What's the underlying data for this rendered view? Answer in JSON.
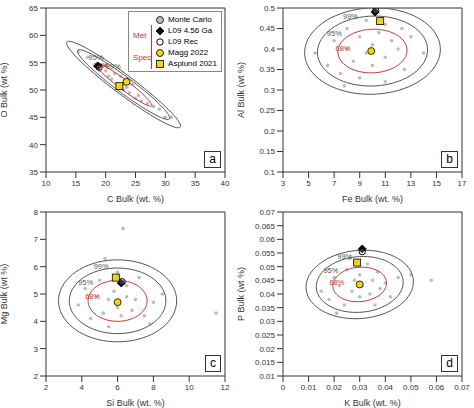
{
  "chart_data": [
    {
      "type": "scatter",
      "panel": "a",
      "x_label": "C Bulk (wt. %)",
      "y_label": "O Bulk (wt %)",
      "xlim": [
        10,
        40
      ],
      "ylim": [
        35,
        65
      ],
      "xticks": [
        10,
        15,
        20,
        25,
        30,
        35,
        40
      ],
      "yticks": [
        35,
        40,
        45,
        50,
        55,
        60,
        65
      ],
      "grid": false,
      "legend": "top-right",
      "legend_groups": [
        {
          "label": "Met",
          "series": [
            "L09 4.56 Ga",
            "L09 Rec"
          ]
        },
        {
          "label": "Spec",
          "series": [
            "Magg 2022",
            "Asplund 2021"
          ]
        }
      ],
      "series": [
        {
          "name": "Monte Carlo",
          "color": "#bdbdbd",
          "marker": "circle",
          "x": [
            15.5,
            17,
            18.5,
            19,
            20,
            20.5,
            21,
            21.5,
            22,
            22.5,
            23,
            23,
            23.5,
            24,
            24.5,
            25,
            25.5,
            26,
            27,
            28,
            29,
            30,
            31,
            20
          ],
          "y": [
            57,
            56,
            54,
            53.5,
            53.5,
            52.5,
            52,
            53,
            51,
            52.5,
            51,
            50,
            50.5,
            49.5,
            51,
            48.5,
            49,
            48,
            47.5,
            47,
            46.5,
            45,
            45,
            54.5
          ]
        },
        {
          "name": "L09 4.56 Ga",
          "color": "#000000",
          "marker": "diamond",
          "x": [
            18.7
          ],
          "y": [
            54.4
          ]
        },
        {
          "name": "L09 Rec",
          "color": "#000000",
          "marker": "open_circle",
          "x": [
            18.9
          ],
          "y": [
            54.2
          ]
        },
        {
          "name": "Magg 2022",
          "color": "#f2d21b",
          "marker": "circle",
          "x": [
            23.5
          ],
          "y": [
            51.5
          ]
        },
        {
          "name": "Asplund 2021",
          "color": "#f2d21b",
          "marker": "square",
          "x": [
            22.3
          ],
          "y": [
            50.7
          ]
        }
      ],
      "ellipses": [
        {
          "label": "99%",
          "color": "#555555",
          "center": [
            23,
            51
          ],
          "axis1": [
            9.5,
            -7.8
          ],
          "axis2": [
            1.1,
            1.35
          ]
        },
        {
          "label": "95%",
          "color": "#555555",
          "center": [
            23,
            51
          ],
          "axis1": [
            7.7,
            -6.3
          ],
          "axis2": [
            0.9,
            1.1
          ]
        },
        {
          "label": "68%",
          "color": "#cc3333",
          "center": [
            23,
            51
          ],
          "axis1": [
            4.7,
            -3.9
          ],
          "axis2": [
            0.55,
            0.68
          ]
        }
      ]
    },
    {
      "type": "scatter",
      "panel": "b",
      "x_label": "Fe Bulk (wt. %)",
      "y_label": "Al Bulk (wt %)",
      "xlim": [
        3,
        17
      ],
      "ylim": [
        0.1,
        0.5
      ],
      "xticks": [
        3,
        5,
        7,
        9,
        11,
        13,
        15,
        17
      ],
      "yticks": [
        0.1,
        0.15,
        0.2,
        0.25,
        0.3,
        0.35,
        0.4,
        0.45,
        0.5
      ],
      "grid": false,
      "series": [
        {
          "name": "Monte Carlo",
          "color": "#bdbdbd",
          "marker": "circle",
          "x": [
            5.5,
            6.5,
            7,
            7.5,
            8,
            8,
            8.5,
            9,
            9,
            9.5,
            10,
            10,
            10.5,
            11,
            11,
            11.5,
            12,
            12.5,
            13,
            14,
            9.5,
            11,
            7.8,
            12.3
          ],
          "y": [
            0.39,
            0.36,
            0.42,
            0.34,
            0.4,
            0.45,
            0.37,
            0.43,
            0.33,
            0.39,
            0.41,
            0.36,
            0.44,
            0.38,
            0.32,
            0.42,
            0.4,
            0.35,
            0.43,
            0.39,
            0.47,
            0.46,
            0.31,
            0.45
          ]
        },
        {
          "name": "L09 4.56 Ga",
          "color": "#000000",
          "marker": "diamond",
          "x": [
            10.2
          ],
          "y": [
            0.49
          ]
        },
        {
          "name": "L09 Rec",
          "color": "#000000",
          "marker": "open_circle",
          "x": [
            10.25
          ],
          "y": [
            0.493
          ]
        },
        {
          "name": "Magg 2022",
          "color": "#f2d21b",
          "marker": "circle",
          "x": [
            9.9
          ],
          "y": [
            0.395
          ]
        },
        {
          "name": "Asplund 2021",
          "color": "#f2d21b",
          "marker": "square",
          "x": [
            10.6
          ],
          "y": [
            0.468
          ]
        }
      ],
      "ellipses": [
        {
          "label": "99%",
          "color": "#555555",
          "center": [
            10,
            0.395
          ],
          "axis1": [
            5.3,
            0.01
          ],
          "axis2": [
            -0.3,
            0.105
          ]
        },
        {
          "label": "95%",
          "color": "#555555",
          "center": [
            10,
            0.395
          ],
          "axis1": [
            4.3,
            0.008
          ],
          "axis2": [
            -0.25,
            0.085
          ]
        },
        {
          "label": "68%",
          "color": "#cc3333",
          "center": [
            10,
            0.395
          ],
          "axis1": [
            2.7,
            0.005
          ],
          "axis2": [
            -0.15,
            0.053
          ]
        }
      ]
    },
    {
      "type": "scatter",
      "panel": "c",
      "x_label": "Si Bulk (wt. %)",
      "y_label": "Mg Bulk (wt %)",
      "xlim": [
        2,
        12
      ],
      "ylim": [
        2,
        8
      ],
      "xticks": [
        2,
        4,
        6,
        8,
        10,
        12
      ],
      "yticks": [
        2,
        3,
        4,
        5,
        6,
        7,
        8
      ],
      "grid": false,
      "series": [
        {
          "name": "Monte Carlo",
          "color": "#bdbdbd",
          "marker": "circle",
          "x": [
            3.8,
            4.2,
            4.5,
            4.8,
            5,
            5.2,
            5.5,
            5.5,
            5.8,
            6,
            6,
            6.2,
            6.5,
            6.5,
            6.8,
            7,
            7.2,
            7.5,
            8,
            8.5,
            6.3,
            5.3,
            7.8,
            11.5
          ],
          "y": [
            4.6,
            5.2,
            4.1,
            4.9,
            5.5,
            4.3,
            4.8,
            3.8,
            5.1,
            4.5,
            5.8,
            4.2,
            4.9,
            5.3,
            4.4,
            4.8,
            5.6,
            4.2,
            4.7,
            5.0,
            7.4,
            6.3,
            3.9,
            4.3
          ]
        },
        {
          "name": "L09 4.56 Ga",
          "color": "#000000",
          "marker": "diamond",
          "x": [
            6.2
          ],
          "y": [
            5.4
          ]
        },
        {
          "name": "L09 Rec",
          "color": "#000000",
          "marker": "open_circle",
          "x": [
            6.25
          ],
          "y": [
            5.45
          ]
        },
        {
          "name": "Magg 2022",
          "color": "#f2d21b",
          "marker": "circle",
          "x": [
            6.0
          ],
          "y": [
            4.7
          ]
        },
        {
          "name": "Asplund 2021",
          "color": "#f2d21b",
          "marker": "square",
          "x": [
            5.9
          ],
          "y": [
            5.6
          ]
        }
      ],
      "ellipses": [
        {
          "label": "99%",
          "color": "#555555",
          "center": [
            6,
            4.75
          ],
          "axis1": [
            3.3,
            0
          ],
          "axis2": [
            0,
            1.5
          ]
        },
        {
          "label": "95%",
          "color": "#555555",
          "center": [
            6,
            4.75
          ],
          "axis1": [
            2.7,
            0
          ],
          "axis2": [
            0,
            1.2
          ]
        },
        {
          "label": "68%",
          "color": "#cc3333",
          "center": [
            6,
            4.75
          ],
          "axis1": [
            1.65,
            0
          ],
          "axis2": [
            0,
            0.75
          ]
        }
      ]
    },
    {
      "type": "scatter",
      "panel": "d",
      "x_label": "K Bulk (wt. %)",
      "y_label": "P Bulk (wt %)",
      "xlim": [
        0,
        0.07
      ],
      "ylim": [
        0.01,
        0.07
      ],
      "xticks": [
        0,
        0.01,
        0.02,
        0.03,
        0.04,
        0.05,
        0.06,
        0.07
      ],
      "yticks": [
        0.01,
        0.015,
        0.02,
        0.025,
        0.03,
        0.035,
        0.04,
        0.045,
        0.05,
        0.055,
        0.06,
        0.065,
        0.07
      ],
      "grid": false,
      "series": [
        {
          "name": "Monte Carlo",
          "color": "#bdbdbd",
          "marker": "circle",
          "x": [
            0.015,
            0.018,
            0.02,
            0.022,
            0.024,
            0.025,
            0.027,
            0.028,
            0.03,
            0.03,
            0.031,
            0.033,
            0.034,
            0.035,
            0.037,
            0.038,
            0.04,
            0.042,
            0.045,
            0.05,
            0.026,
            0.036,
            0.058,
            0.021
          ],
          "y": [
            0.041,
            0.038,
            0.046,
            0.043,
            0.036,
            0.049,
            0.041,
            0.045,
            0.039,
            0.047,
            0.043,
            0.051,
            0.04,
            0.045,
            0.048,
            0.042,
            0.044,
            0.039,
            0.046,
            0.047,
            0.053,
            0.036,
            0.045,
            0.033
          ]
        },
        {
          "name": "L09 4.56 Ga",
          "color": "#000000",
          "marker": "diamond",
          "x": [
            0.031
          ],
          "y": [
            0.0565
          ]
        },
        {
          "name": "L09 Rec",
          "color": "#000000",
          "marker": "open_circle",
          "x": [
            0.031
          ],
          "y": [
            0.0555
          ]
        },
        {
          "name": "Magg 2022",
          "color": "#f2d21b",
          "marker": "circle",
          "x": [
            0.03
          ],
          "y": [
            0.0435
          ]
        },
        {
          "name": "Asplund 2021",
          "color": "#f2d21b",
          "marker": "square",
          "x": [
            0.029
          ],
          "y": [
            0.0515
          ]
        }
      ],
      "ellipses": [
        {
          "label": "99%",
          "color": "#555555",
          "center": [
            0.03,
            0.0435
          ],
          "axis1": [
            0.021,
            0.001
          ],
          "axis2": [
            0,
            0.0125
          ]
        },
        {
          "label": "95%",
          "color": "#555555",
          "center": [
            0.03,
            0.0435
          ],
          "axis1": [
            0.017,
            0.0008
          ],
          "axis2": [
            0,
            0.0102
          ]
        },
        {
          "label": "68%",
          "color": "#cc3333",
          "center": [
            0.03,
            0.0435
          ],
          "axis1": [
            0.0105,
            0.0005
          ],
          "axis2": [
            0,
            0.0063
          ]
        }
      ]
    }
  ]
}
